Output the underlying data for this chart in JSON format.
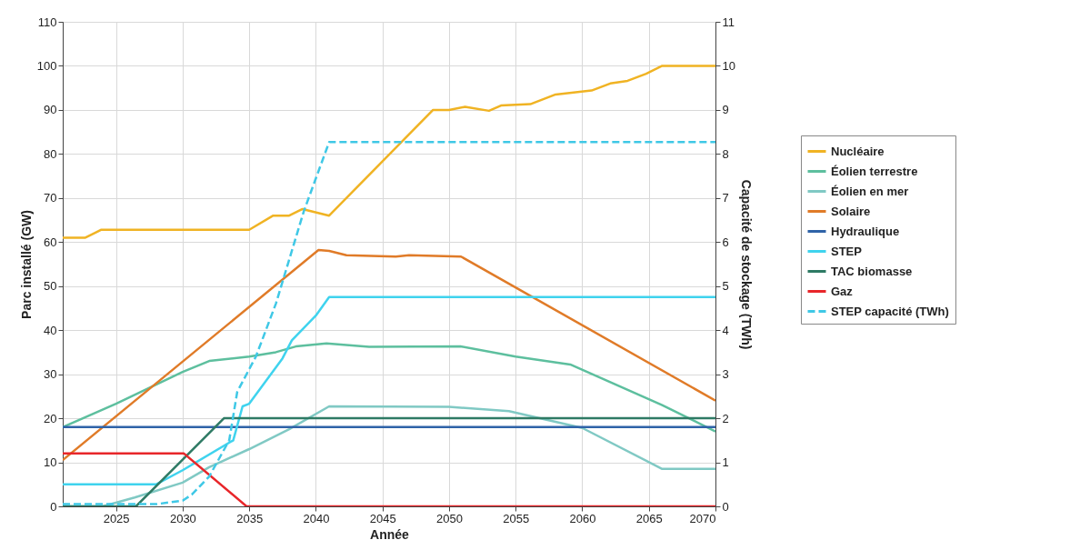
{
  "chart_data": {
    "type": "line",
    "xlabel": "Année",
    "ylabel": "Parc installé (GW)",
    "y2label": "Capacité de stockage (TWh)",
    "xlim": [
      2021,
      2070
    ],
    "xticks": [
      2025,
      2030,
      2035,
      2040,
      2045,
      2050,
      2055,
      2060,
      2065,
      2070
    ],
    "ylim": [
      0,
      110
    ],
    "yticks": [
      0,
      10,
      20,
      30,
      40,
      50,
      60,
      70,
      80,
      90,
      100,
      110
    ],
    "y2lim": [
      0,
      11
    ],
    "y2ticks": [
      0,
      1,
      2,
      3,
      4,
      5,
      6,
      7,
      8,
      9,
      10,
      11
    ],
    "grid": true,
    "legend": "right",
    "line_style": "solid",
    "series": [
      {
        "name": "Nucléaire",
        "color": "#f0b323",
        "x": [
          2021,
          2022.7,
          2023.9,
          2035,
          2036.8,
          2038,
          2039,
          2041,
          2048.8,
          2050,
          2051.2,
          2053,
          2053.9,
          2056.1,
          2058,
          2060.7,
          2062.1,
          2063.4,
          2064.8,
          2066,
          2070
        ],
        "values": [
          61,
          61,
          62.8,
          62.8,
          66,
          66,
          67.5,
          66,
          90,
          90,
          90.7,
          89.8,
          91,
          91.3,
          93.5,
          94.4,
          96,
          96.6,
          98.2,
          100,
          100
        ]
      },
      {
        "name": "Éolien terrestre",
        "color": "#5dbf9e",
        "x": [
          2021,
          2025,
          2030,
          2032,
          2035,
          2037,
          2038.5,
          2040.8,
          2044,
          2050.9,
          2055,
          2059.1,
          2066,
          2070
        ],
        "values": [
          18,
          23.3,
          30.5,
          33,
          34,
          35,
          36.3,
          37,
          36.2,
          36.3,
          34,
          32.2,
          23,
          17
        ]
      },
      {
        "name": "Éolien en mer",
        "color": "#80c9c4",
        "x": [
          2021,
          2024,
          2026.4,
          2030,
          2032,
          2035,
          2038,
          2041,
          2050,
          2054.5,
          2060,
          2066,
          2070
        ],
        "values": [
          0,
          0,
          2,
          5.4,
          8.9,
          13,
          17.5,
          22.7,
          22.6,
          21.6,
          17.8,
          8.5,
          8.5
        ]
      },
      {
        "name": "Solaire",
        "color": "#e07b28",
        "x": [
          2021,
          2040.2,
          2041,
          2042.3,
          2046,
          2047,
          2050.9,
          2070
        ],
        "values": [
          10.5,
          58.2,
          58,
          57,
          56.7,
          57,
          56.7,
          24
        ]
      },
      {
        "name": "Hydraulique",
        "color": "#2f63a8",
        "x": [
          2021,
          2070
        ],
        "values": [
          18,
          18
        ]
      },
      {
        "name": "STEP",
        "color": "#3fd3ee",
        "x": [
          2021,
          2028,
          2030,
          2033.8,
          2034.5,
          2035,
          2037.5,
          2038.2,
          2040,
          2041,
          2070
        ],
        "values": [
          5,
          5,
          8.2,
          15,
          22.7,
          23.3,
          33.6,
          37.7,
          43.3,
          47.5,
          47.5
        ]
      },
      {
        "name": "TAC biomasse",
        "color": "#2e7a64",
        "x": [
          2021,
          2026.5,
          2033.1,
          2070
        ],
        "values": [
          0,
          0,
          20,
          20
        ]
      },
      {
        "name": "Gaz",
        "color": "#e8262a",
        "x": [
          2021,
          2030.1,
          2034.8,
          2070
        ],
        "values": [
          12,
          12,
          0,
          0
        ]
      },
      {
        "name": "STEP capacité (TWh)",
        "color": "#3fc8e6",
        "axis": "y2",
        "line_style": "dashed",
        "x": [
          2021,
          2028,
          2030,
          2030.7,
          2032,
          2033.5,
          2034.1,
          2035.5,
          2037,
          2038,
          2039.1,
          2041,
          2070
        ],
        "values": [
          0.05,
          0.05,
          0.13,
          0.27,
          0.68,
          1.5,
          2.6,
          3.4,
          4.6,
          5.6,
          6.7,
          8.27,
          8.27
        ]
      }
    ]
  }
}
